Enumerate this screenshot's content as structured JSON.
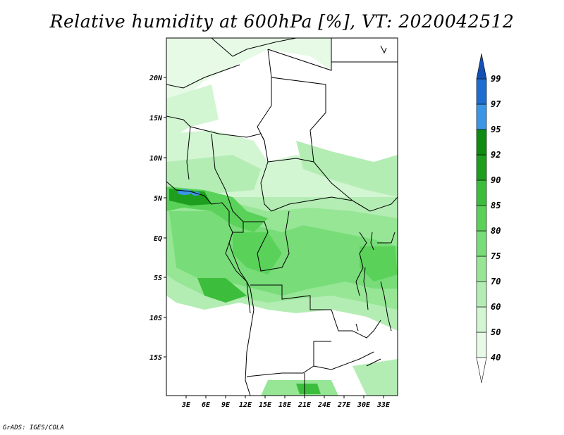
{
  "title": "Relative humidity at 600hPa [%], VT: 2020042512",
  "credit": "GrADS: IGES/COLA",
  "map": {
    "lon_labels": [
      "3E",
      "6E",
      "9E",
      "12E",
      "15E",
      "18E",
      "21E",
      "24E",
      "27E",
      "30E",
      "33E"
    ],
    "lat_labels": [
      "20N",
      "15N",
      "10N",
      "5N",
      "EQ",
      "5S",
      "10S",
      "15S"
    ]
  },
  "colorbar": {
    "levels": [
      "40",
      "50",
      "60",
      "70",
      "75",
      "80",
      "85",
      "90",
      "92",
      "95",
      "97",
      "99"
    ],
    "colors": [
      "#e6fae6",
      "#d2f5d2",
      "#b4edb4",
      "#96e696",
      "#78dc78",
      "#5ad25a",
      "#3cbe3c",
      "#1e9e1e",
      "#0f8c0f",
      "#3c96e6",
      "#1e6ed2",
      "#1450b4"
    ]
  }
}
